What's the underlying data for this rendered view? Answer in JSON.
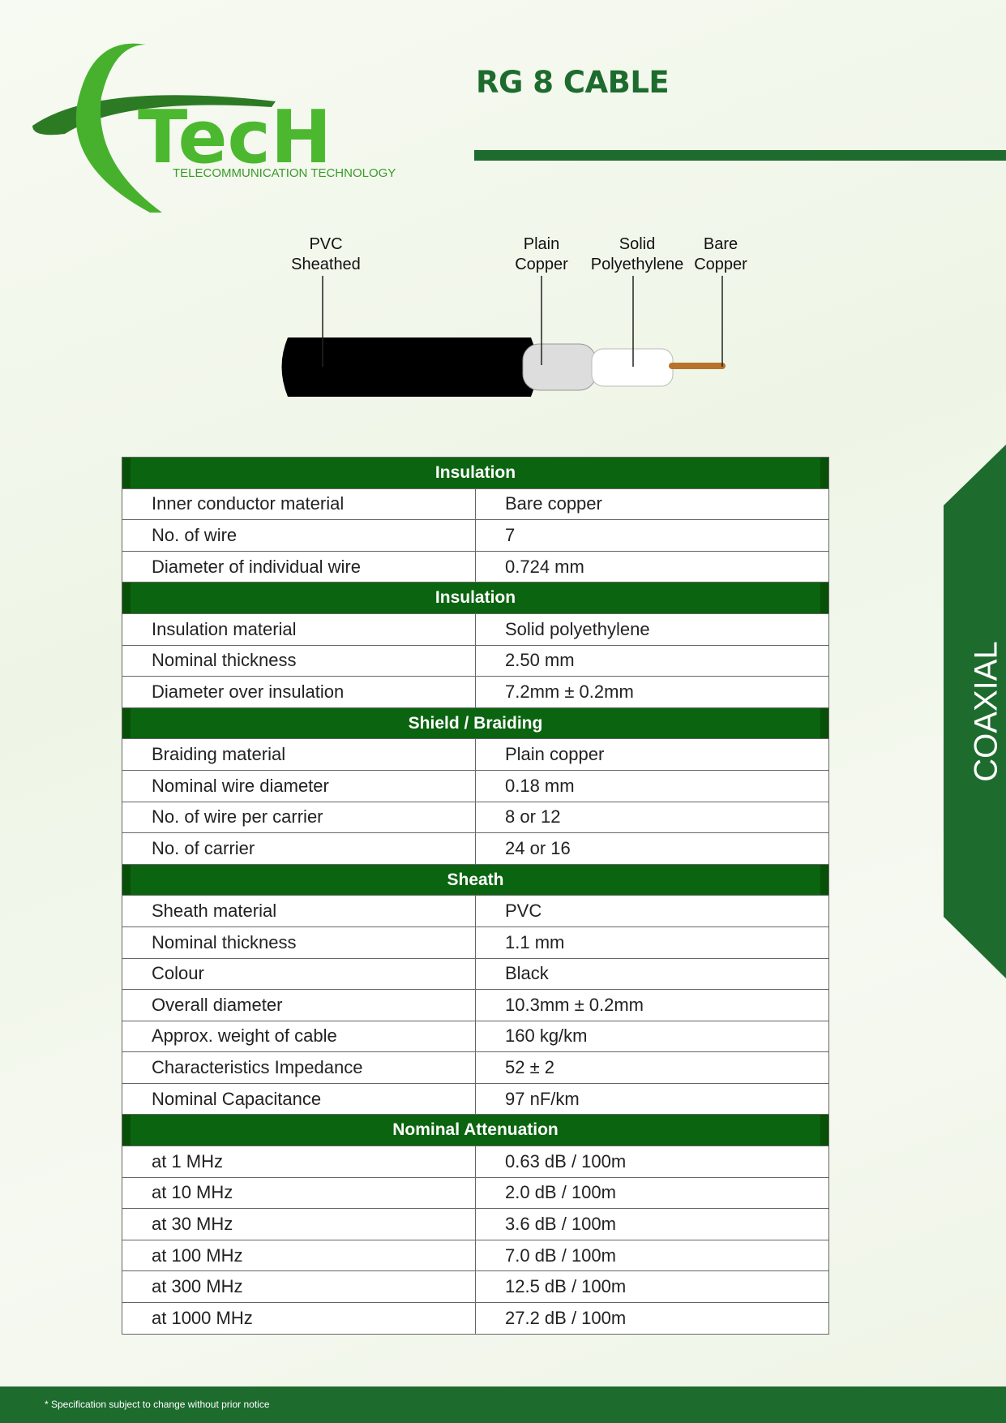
{
  "header": {
    "title": "RG 8 CABLE",
    "logo_wordmark": "TecH",
    "logo_tagline": "TELECOMMUNICATION TECHNOLOGY"
  },
  "diagram": {
    "labels": [
      [
        "PVC",
        "Sheathed"
      ],
      [
        "Plain",
        "Copper"
      ],
      [
        "Solid",
        "Polyethylene"
      ],
      [
        "Bare",
        "Copper"
      ]
    ]
  },
  "table": {
    "sections": [
      {
        "title": "Insulation",
        "rows": [
          [
            "Inner conductor material",
            "Bare copper"
          ],
          [
            "No. of wire",
            "7"
          ],
          [
            "Diameter of individual wire",
            "0.724 mm"
          ]
        ]
      },
      {
        "title": "Insulation",
        "rows": [
          [
            "Insulation material",
            "Solid polyethylene"
          ],
          [
            "Nominal thickness",
            "2.50 mm"
          ],
          [
            "Diameter over insulation",
            "7.2mm ± 0.2mm"
          ]
        ]
      },
      {
        "title": "Shield / Braiding",
        "rows": [
          [
            "Braiding material",
            "Plain copper"
          ],
          [
            "Nominal wire diameter",
            "0.18 mm"
          ],
          [
            "No. of wire per carrier",
            "8 or 12"
          ],
          [
            "No. of carrier",
            "24 or 16"
          ]
        ]
      },
      {
        "title": "Sheath",
        "rows": [
          [
            "Sheath material",
            "PVC"
          ],
          [
            "Nominal thickness",
            "1.1 mm"
          ],
          [
            "Colour",
            "Black"
          ],
          [
            "Overall diameter",
            "10.3mm ± 0.2mm"
          ],
          [
            "Approx. weight of cable",
            "160 kg/km"
          ],
          [
            "Characteristics Impedance",
            "52 ± 2"
          ],
          [
            "Nominal Capacitance",
            "97 nF/km"
          ]
        ]
      },
      {
        "title": "Nominal Attenuation",
        "rows": [
          [
            "at 1 MHz",
            "0.63 dB / 100m"
          ],
          [
            "at 10 MHz",
            "2.0 dB / 100m"
          ],
          [
            "at 30 MHz",
            "3.6 dB / 100m"
          ],
          [
            "at 100 MHz",
            "7.0 dB / 100m"
          ],
          [
            "at 300 MHz",
            "12.5 dB / 100m"
          ],
          [
            "at 1000 MHz",
            "27.2 dB / 100m"
          ]
        ]
      }
    ]
  },
  "side_tab": "COAXIAL",
  "footer": "* Specification subject to change without prior notice"
}
